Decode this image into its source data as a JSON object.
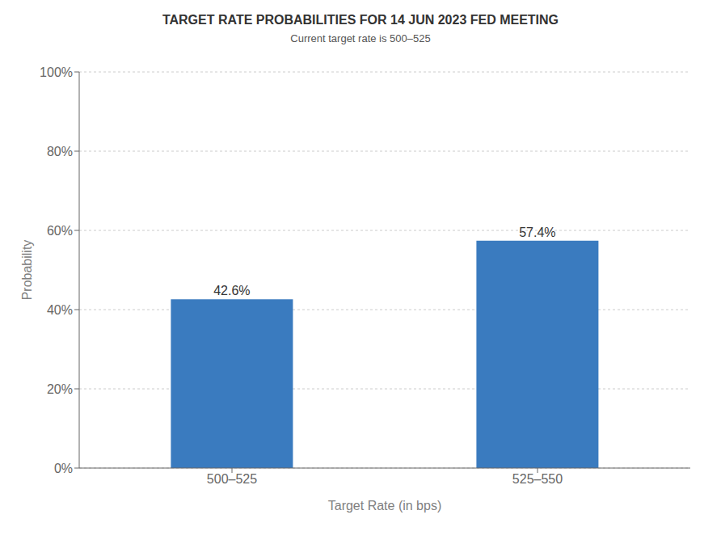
{
  "chart_data": {
    "type": "bar",
    "title": "TARGET RATE PROBABILITIES FOR 14 JUN 2023 FED MEETING",
    "subtitle": "Current target rate is 500–525",
    "xlabel": "Target Rate (in bps)",
    "ylabel": "Probability",
    "categories": [
      "500–525",
      "525–550"
    ],
    "values": [
      42.6,
      57.4
    ],
    "value_labels": [
      "42.6%",
      "57.4%"
    ],
    "data_labels": true,
    "color": "#3a7bbf",
    "ylim": [
      0,
      100
    ],
    "yticks": [
      {
        "value": 0,
        "label": "0%"
      },
      {
        "value": 20,
        "label": "20%"
      },
      {
        "value": 40,
        "label": "40%"
      },
      {
        "value": 60,
        "label": "60%"
      },
      {
        "value": 80,
        "label": "80%"
      },
      {
        "value": 100,
        "label": "100%"
      }
    ],
    "grid": true
  }
}
